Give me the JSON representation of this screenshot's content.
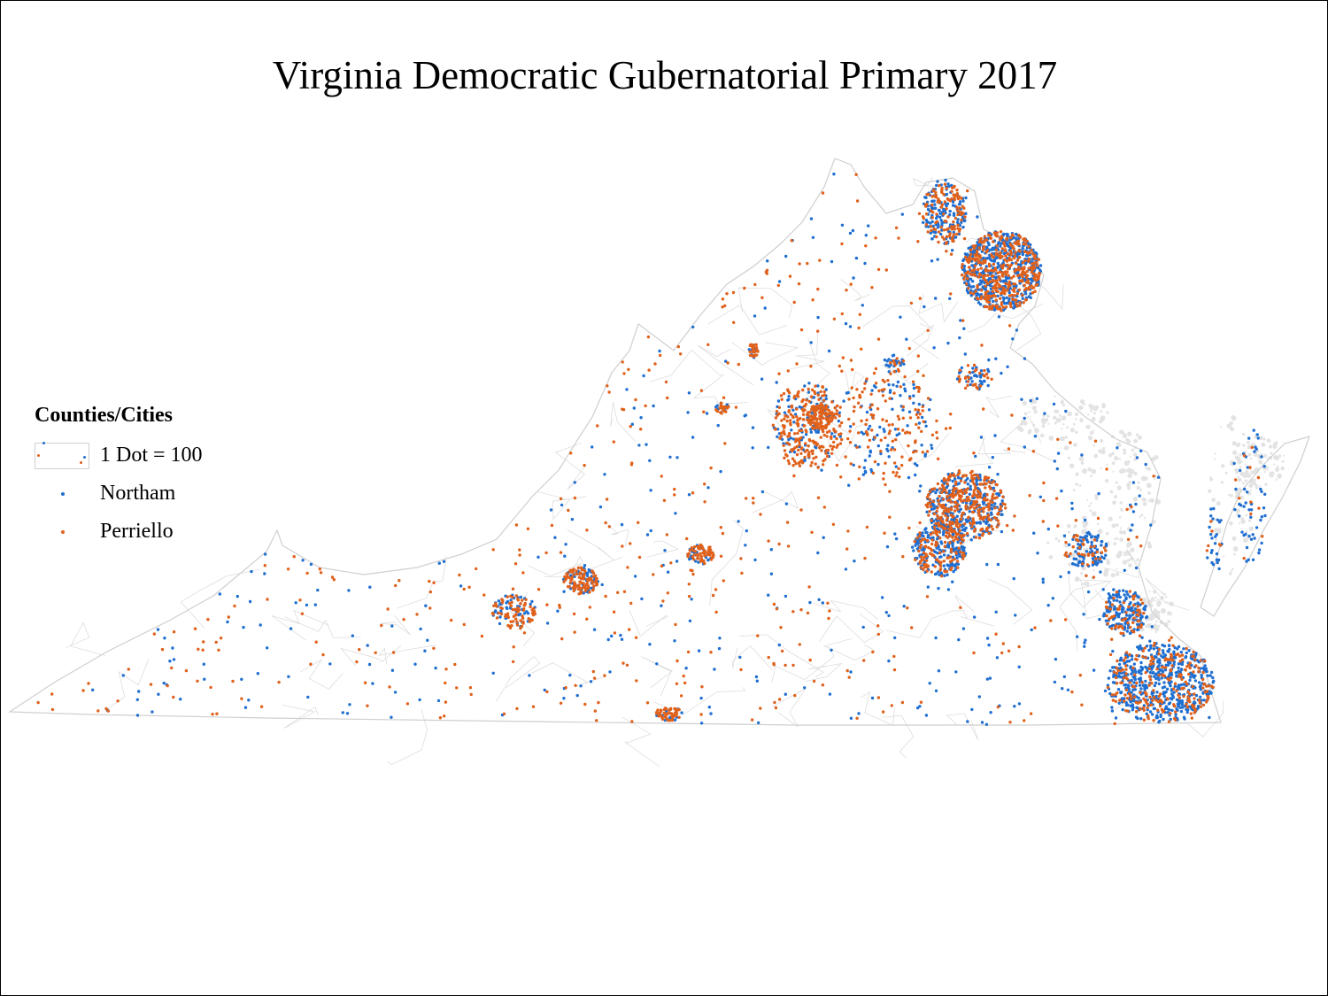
{
  "title": "Virginia Democratic Gubernatorial Primary 2017",
  "legend": {
    "heading": "Counties/Cities",
    "scale_label": "1 Dot = 100",
    "items": [
      {
        "name": "Northam",
        "color": "#1f6fd1"
      },
      {
        "name": "Perriello",
        "color": "#e0611b"
      }
    ]
  },
  "map": {
    "state": "Virginia",
    "boundary_color": "#d9d9d9",
    "water_color": "#e3e3e3",
    "dot_unit": 100
  }
}
